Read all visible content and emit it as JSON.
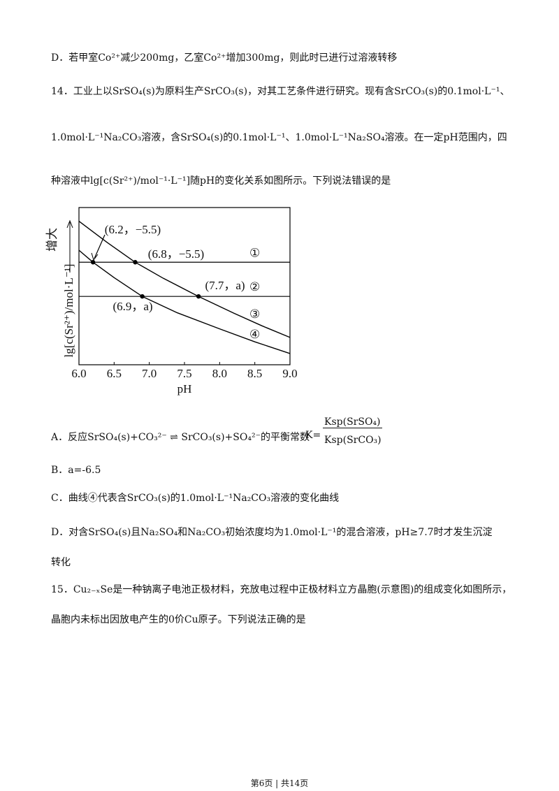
{
  "document": {
    "lines": [
      "D．若甲室Co²⁺减少200mg，乙室Co²⁺增加300mg，则此时已进行过溶液转移",
      "14．工业上以SrSO₄(s)为原料生产SrCO₃(s)，对其工艺条件进行研究。现有含SrCO₃(s)的0.1mol·L⁻¹、",
      "1.0mol·L⁻¹Na₂CO₃溶液，含SrSO₄(s)的0.1mol·L⁻¹、1.0mol·L⁻¹Na₂SO₄溶液。在一定pH范围内，四",
      "种溶液中lg[c(Sr²⁺)/mol⁻¹·L⁻¹]随pH的变化关系如图所示。下列说法错误的是"
    ],
    "option_a": {
      "text": "A．反应SrSO₄(s)+CO₃²⁻ ⇌ SrCO₃(s)+SO₄²⁻的平衡常数",
      "k": "K=",
      "numerator": "Ksp(SrSO₄)",
      "denominator": "Ksp(SrCO₃)"
    },
    "option_b": "B．a=-6.5",
    "option_c": "C．曲线④代表含SrCO₃(s)的1.0mol·L⁻¹Na₂CO₃溶液的变化曲线",
    "option_d": [
      "D．对含SrSO₄(s)且Na₂SO₄和Na₂CO₃初始浓度均为1.0mol·L⁻¹的混合溶液，pH≥7.7时才发生沉淀",
      "转化"
    ],
    "question_15": [
      "15．Cu₂₋ₓSe是一种钠离子电池正极材料，充放电过程中正极材料立方晶胞(示意图)的组成变化如图所示，",
      "晶胞内未标出因放电产生的0价Cu原子。下列说法正确的是"
    ],
    "footer": "第6页 | 共14页"
  },
  "chart_data": {
    "type": "line",
    "x_label": "pH",
    "y_label": "lg[c(Sr²⁺)/mol·L⁻¹]",
    "y_direction_label": "增大",
    "xlim": [
      6.0,
      9.0
    ],
    "ylim": [
      -8.5,
      -3.9
    ],
    "xticks": [
      {
        "value": 6,
        "label": "6.0"
      },
      6.5,
      {
        "value": 7,
        "label": "7.0"
      },
      7.5,
      {
        "value": 8,
        "label": "8.0"
      },
      8.5,
      {
        "value": 9,
        "label": "9.0"
      }
    ],
    "hlines": [
      {
        "name": "①",
        "value": -5.5
      },
      {
        "name": "②",
        "value": -6.5
      }
    ],
    "series": [
      {
        "name": "③",
        "color": "#000000",
        "x": [
          6.0,
          6.4,
          6.8,
          7.2,
          7.7,
          8.2,
          8.6,
          9.0
        ],
        "values": [
          -4.3,
          -4.92,
          -5.5,
          -5.97,
          -6.5,
          -6.99,
          -7.36,
          -7.7
        ]
      },
      {
        "name": "④",
        "color": "#000000",
        "x": [
          6.0,
          6.2,
          6.5,
          6.9,
          7.4,
          8.0,
          8.5,
          9.0
        ],
        "values": [
          -5.15,
          -5.5,
          -5.95,
          -6.5,
          -6.98,
          -7.45,
          -7.83,
          -8.17
        ]
      }
    ],
    "points": [
      {
        "x": 6.2,
        "y": -5.5,
        "label": "(6.2，−5.5)"
      },
      {
        "x": 6.8,
        "y": -5.5,
        "label": "(6.8，−5.5)"
      },
      {
        "x": 7.7,
        "y": -6.5,
        "label": "(7.7，a)"
      },
      {
        "x": 6.9,
        "y": -6.5,
        "label": "(6.9，a)"
      }
    ]
  }
}
